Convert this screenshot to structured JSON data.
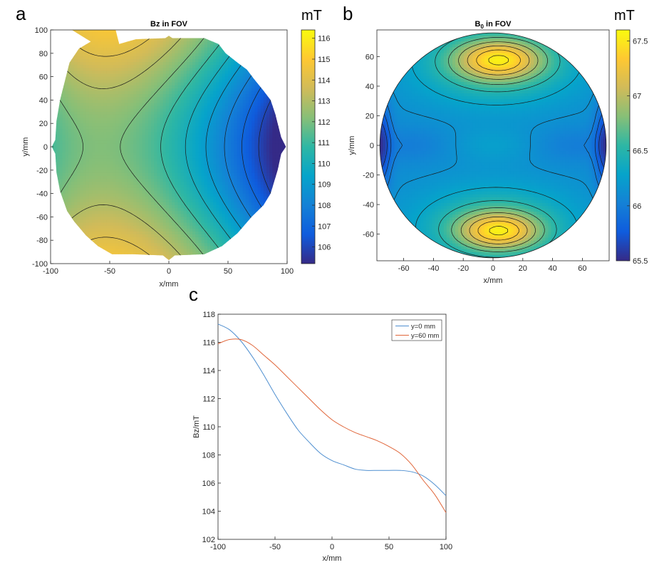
{
  "colors": {
    "parula": [
      "#352a87",
      "#0f5cdd",
      "#1481d6",
      "#06a4ca",
      "#2eb7a4",
      "#87bf77",
      "#d1bb59",
      "#fec832",
      "#f9fb0e"
    ],
    "series_blue": "#4f8fd0",
    "series_orange": "#e0663a",
    "contour_line": "#1a1a1a"
  },
  "chart_data": [
    {
      "panel": "a",
      "type": "heatmap",
      "title": "Bz in FOV",
      "xlabel": "x/mm",
      "ylabel": "y/mm",
      "xlim": [
        -100,
        100
      ],
      "ylim": [
        -100,
        100
      ],
      "xticks": [
        -100,
        -50,
        0,
        50,
        100
      ],
      "yticks": [
        100,
        80,
        60,
        40,
        20,
        0,
        -20,
        -40,
        -60,
        -80,
        -100
      ],
      "colorbar": {
        "unit": "mT",
        "range": [
          105.2,
          116.4
        ],
        "ticks": [
          116,
          115,
          114,
          113,
          112,
          111,
          110,
          109,
          108,
          107,
          106
        ]
      },
      "contour_levels": [
        106,
        107,
        108,
        109,
        110,
        111,
        112,
        113,
        114,
        115,
        116
      ]
    },
    {
      "panel": "b",
      "type": "heatmap",
      "title": "B",
      "title_sub": "0",
      "title_rest": " in FOV",
      "xlabel": "x/mm",
      "ylabel": "y/mm",
      "xlim": [
        -78,
        78
      ],
      "ylim": [
        -78,
        78
      ],
      "xticks": [
        -60,
        -40,
        -20,
        0,
        20,
        40,
        60
      ],
      "yticks": [
        60,
        40,
        20,
        0,
        -20,
        -40,
        -60
      ],
      "colorbar": {
        "unit": "mT",
        "range": [
          65.5,
          67.6
        ],
        "ticks": [
          67.5,
          67,
          66.5,
          66,
          65.5
        ]
      },
      "contour_levels": [
        65.7,
        65.85,
        66.0,
        66.15,
        66.3,
        66.5,
        66.7,
        66.9,
        67.1,
        67.3,
        67.5
      ]
    },
    {
      "panel": "c",
      "type": "line",
      "xlabel": "x/mm",
      "ylabel": "Bz/mT",
      "xlim": [
        -100,
        100
      ],
      "ylim": [
        102,
        118
      ],
      "xticks": [
        -100,
        -50,
        0,
        50,
        100
      ],
      "yticks": [
        118,
        116,
        114,
        112,
        110,
        108,
        106,
        104,
        102
      ],
      "legend_position": "top-right",
      "series": [
        {
          "name": "y=0 mm",
          "color": "#4f8fd0",
          "x": [
            -100,
            -90,
            -80,
            -70,
            -60,
            -50,
            -40,
            -30,
            -20,
            -10,
            0,
            10,
            20,
            30,
            40,
            50,
            60,
            70,
            80,
            90,
            100
          ],
          "values": [
            117.3,
            116.9,
            116.1,
            115.0,
            113.7,
            112.3,
            111.0,
            109.8,
            108.9,
            108.1,
            107.6,
            107.3,
            107.0,
            106.9,
            106.9,
            106.9,
            106.9,
            106.8,
            106.5,
            105.9,
            105.1
          ]
        },
        {
          "name": "y=60 mm",
          "color": "#e0663a",
          "x": [
            -100,
            -90,
            -80,
            -70,
            -60,
            -50,
            -40,
            -30,
            -20,
            -10,
            0,
            10,
            20,
            30,
            40,
            50,
            60,
            70,
            80,
            90,
            100
          ],
          "values": [
            115.9,
            116.2,
            116.2,
            115.8,
            115.1,
            114.4,
            113.6,
            112.8,
            112.0,
            111.2,
            110.5,
            110.0,
            109.6,
            109.3,
            109.0,
            108.6,
            108.1,
            107.3,
            106.2,
            105.2,
            103.9
          ]
        }
      ]
    }
  ]
}
